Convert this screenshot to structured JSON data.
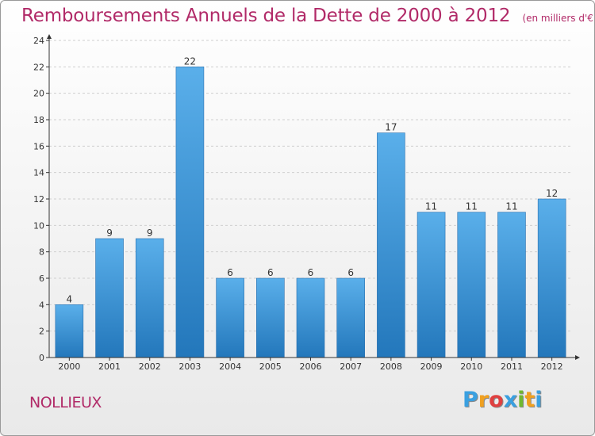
{
  "chart_data": {
    "type": "bar",
    "title": "Remboursements Annuels de la Dette de 2000 à 2012",
    "unit": "(en milliers d'€)",
    "categories": [
      "2000",
      "2001",
      "2002",
      "2003",
      "2004",
      "2005",
      "2006",
      "2007",
      "2008",
      "2009",
      "2010",
      "2011",
      "2012"
    ],
    "values": [
      4,
      9,
      9,
      22,
      6,
      6,
      6,
      6,
      17,
      11,
      11,
      11,
      12
    ],
    "ylim": [
      0,
      24
    ],
    "yticks": [
      0,
      2,
      4,
      6,
      8,
      10,
      12,
      14,
      16,
      18,
      20,
      22,
      24
    ],
    "grid": true,
    "bar_color": "#3b8fd6"
  },
  "commune": "NOLLIEUX",
  "logo": {
    "letters": [
      "P",
      "r",
      "o",
      "x",
      "i",
      "t",
      "i"
    ],
    "colors": [
      "#3aa0e0",
      "#f0a020",
      "#e04040",
      "#3aa0e0",
      "#70b830",
      "#f0a020",
      "#3aa0e0"
    ]
  },
  "colors": {
    "title": "#b12a68",
    "axis": "#333333"
  }
}
